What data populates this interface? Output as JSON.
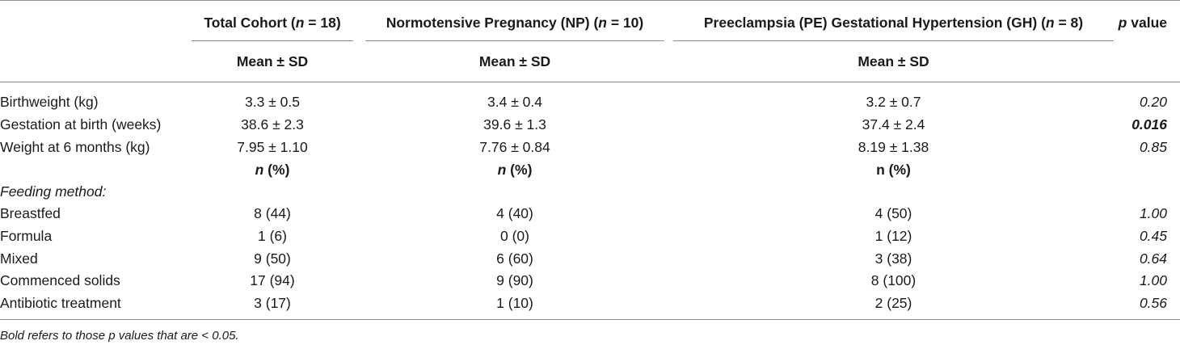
{
  "headers": {
    "total_pre": "Total Cohort (",
    "total_n": "n",
    "total_post": " = 18)",
    "np_pre": "Normotensive Pregnancy (NP) (",
    "np_n": "n",
    "np_post": " = 10)",
    "pe_pre": "Preeclampsia (PE) Gestational Hypertension (GH) (",
    "pe_n": "n",
    "pe_post": " = 8)",
    "p_italic": "p",
    "p_rest": " value"
  },
  "subheaders": {
    "mean_sd": "Mean ± SD",
    "n_italic": "n",
    "pct": " (%)",
    "pe_n_pct": "n (%)"
  },
  "rows_continuous": [
    {
      "label": "Birthweight (kg)",
      "total": "3.3 ± 0.5",
      "np": "3.4 ± 0.4",
      "pe": "3.2 ± 0.7",
      "p": "0.20",
      "bold": false
    },
    {
      "label": "Gestation at birth (weeks)",
      "total": "38.6 ± 2.3",
      "np": "39.6 ± 1.3",
      "pe": "37.4 ± 2.4",
      "p": "0.016",
      "bold": true
    },
    {
      "label": "Weight at 6 months (kg)",
      "total": "7.95 ± 1.10",
      "np": "7.76 ± 0.84",
      "pe": "8.19 ± 1.38",
      "p": "0.85",
      "bold": false
    }
  ],
  "feeding_label": "Feeding method:",
  "rows_categorical": [
    {
      "label": "Breastfed",
      "total": "8 (44)",
      "np": "4 (40)",
      "pe": "4 (50)",
      "p": "1.00"
    },
    {
      "label": "Formula",
      "total": "1 (6)",
      "np": "0 (0)",
      "pe": "1 (12)",
      "p": "0.45"
    },
    {
      "label": "Mixed",
      "total": "9 (50)",
      "np": "6 (60)",
      "pe": "3 (38)",
      "p": "0.64"
    },
    {
      "label": "Commenced solids",
      "total": "17 (94)",
      "np": "9 (90)",
      "pe": "8 (100)",
      "p": "1.00"
    },
    {
      "label": "Antibiotic treatment",
      "total": "3 (17)",
      "np": "1 (10)",
      "pe": "2 (25)",
      "p": "0.56"
    }
  ],
  "footnote": "Bold refers to those p values that are < 0.05."
}
